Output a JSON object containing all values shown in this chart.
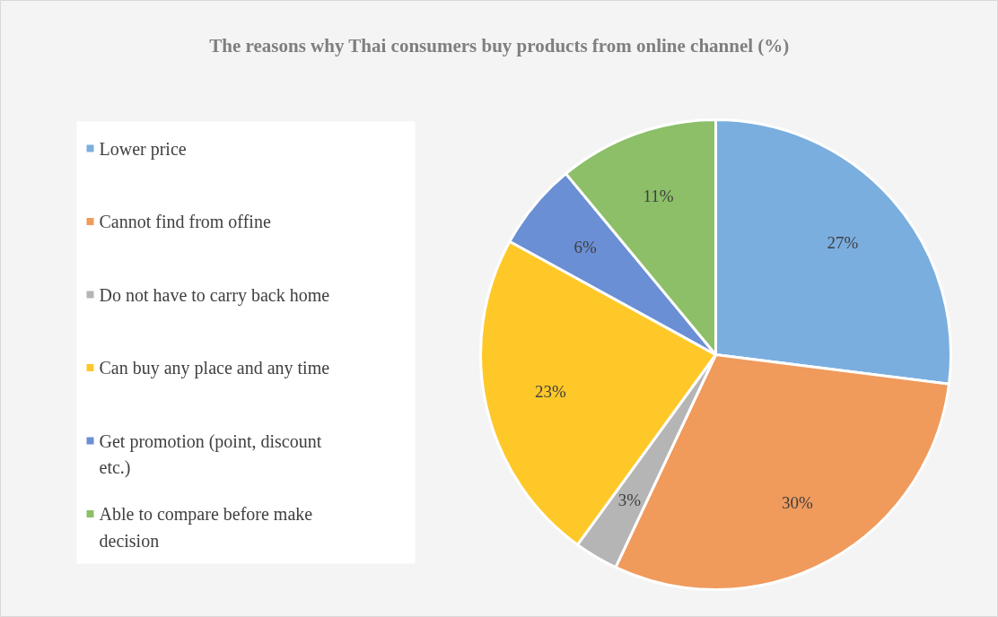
{
  "chart_data": {
    "type": "pie",
    "title": "The reasons why Thai consumers buy products from online channel (%)",
    "categories": [
      "Lower price",
      "Cannot find from offine",
      "Do not have to carry back home",
      "Can buy any place and any time",
      "Get promotion (point, discount etc.)",
      "Able to compare before make decision"
    ],
    "values": [
      27,
      30,
      3,
      23,
      6,
      11
    ],
    "colors": [
      "#7aaedf",
      "#f09a5c",
      "#b5b5b5",
      "#ffc829",
      "#6a8fd4",
      "#8cbf67"
    ],
    "value_labels": [
      "27%",
      "30%",
      "3%",
      "23%",
      "6%",
      "11%"
    ],
    "legend": "left"
  }
}
